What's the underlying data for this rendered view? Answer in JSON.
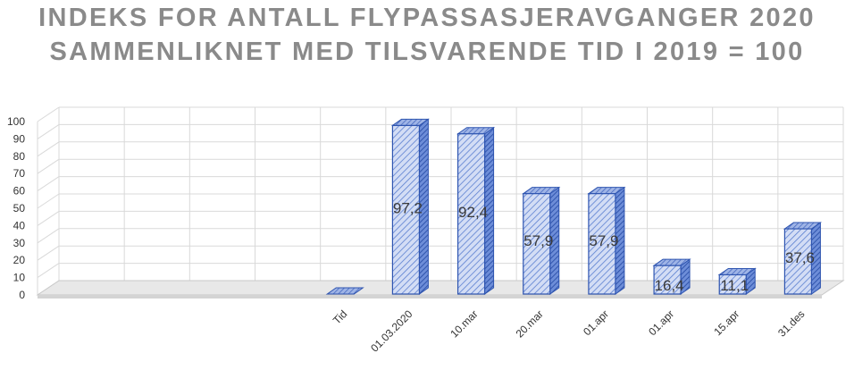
{
  "chart_data": {
    "type": "bar",
    "title_line1": "INDEKS FOR ANTALL FLYPASSASJERAVGANGER 2020",
    "title_line2": "SAMMENLIKNET MED TILSVARENDE TID I 2019 = 100",
    "categories": [
      "Tid",
      "01.03.2020",
      "10.mar",
      "20.mar",
      "01.apr",
      "01.apr",
      "15.apr",
      "31.des"
    ],
    "values": [
      null,
      97.2,
      92.4,
      57.9,
      57.9,
      16.4,
      11.1,
      37.6
    ],
    "data_labels": [
      "",
      "97,2",
      "92,4",
      "57,9",
      "57,9",
      "16,4",
      "11,1",
      "37,6"
    ],
    "ylim": [
      0,
      100
    ],
    "yticks": [
      "0",
      "10",
      "20",
      "30",
      "40",
      "50",
      "60",
      "70",
      "80",
      "90",
      "100"
    ],
    "grid": true,
    "legend": "none",
    "style": "3d-column",
    "colors": {
      "bar_front": "#c6d3f0",
      "bar_stripe": "#4a6fc8",
      "bar_edge": "#2f55b0",
      "grid": "#d9d9d9"
    }
  }
}
